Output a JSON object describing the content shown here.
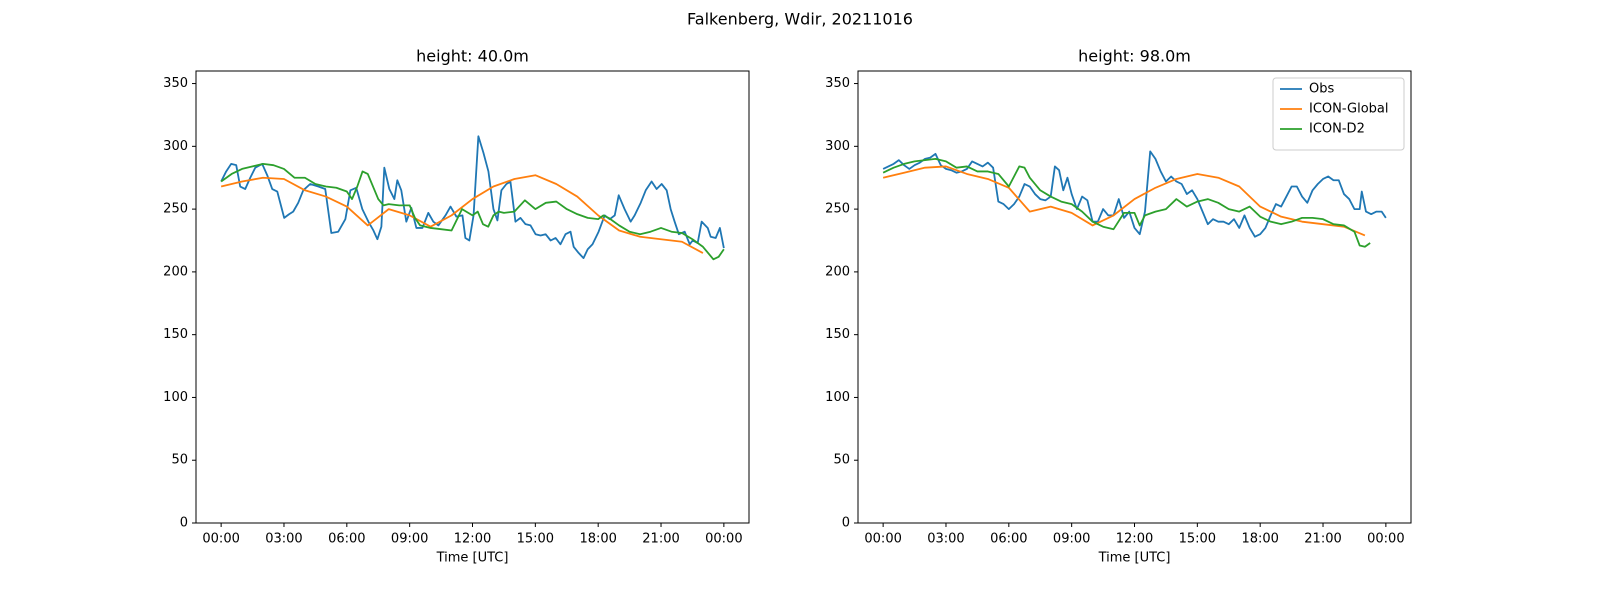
{
  "title": "Falkenberg, Wdir, 20211016",
  "chart_data": [
    {
      "type": "line",
      "title": "height: 40.0m",
      "xlabel": "Time [UTC]",
      "xlim": [
        -1.2,
        25.2
      ],
      "ylim": [
        0,
        360
      ],
      "xticks": [
        {
          "value": 0,
          "label": "00:00"
        },
        {
          "value": 3,
          "label": "03:00"
        },
        {
          "value": 6,
          "label": "06:00"
        },
        {
          "value": 9,
          "label": "09:00"
        },
        {
          "value": 12,
          "label": "12:00"
        },
        {
          "value": 15,
          "label": "15:00"
        },
        {
          "value": 18,
          "label": "18:00"
        },
        {
          "value": 21,
          "label": "21:00"
        },
        {
          "value": 24,
          "label": "00:00"
        }
      ],
      "yticks": [
        0,
        50,
        100,
        150,
        200,
        250,
        300,
        350
      ],
      "series": [
        {
          "name": "Obs",
          "color": "#1f77b4",
          "x": [
            0,
            0.24,
            0.48,
            0.72,
            0.91,
            1.15,
            1.39,
            1.63,
            1.96,
            2.2,
            2.44,
            2.68,
            3.01,
            3.25,
            3.44,
            3.68,
            3.92,
            4.25,
            4.64,
            4.97,
            5.26,
            5.59,
            5.93,
            6.17,
            6.45,
            6.74,
            7.03,
            7.27,
            7.46,
            7.65,
            7.79,
            8.03,
            8.27,
            8.41,
            8.6,
            8.84,
            9.08,
            9.32,
            9.61,
            9.89,
            10.13,
            10.37,
            10.71,
            10.95,
            11.23,
            11.52,
            11.66,
            11.85,
            12.05,
            12.28,
            12.52,
            12.76,
            13.0,
            13.19,
            13.38,
            13.62,
            13.81,
            14.05,
            14.29,
            14.53,
            14.77,
            15.01,
            15.25,
            15.49,
            15.73,
            15.97,
            16.2,
            16.44,
            16.68,
            16.83,
            17.07,
            17.3,
            17.5,
            17.73,
            18.02,
            18.31,
            18.55,
            18.79,
            18.98,
            19.26,
            19.55,
            19.74,
            20.03,
            20.27,
            20.55,
            20.79,
            21.03,
            21.27,
            21.46,
            21.65,
            21.85,
            22.13,
            22.37,
            22.51,
            22.75,
            22.94,
            23.23,
            23.37,
            23.61,
            23.81,
            24.0
          ],
          "values": [
            272,
            280,
            286,
            285,
            268,
            266,
            275,
            283,
            286,
            277,
            266,
            264,
            243,
            246,
            248,
            255,
            265,
            270,
            268,
            266,
            231,
            232,
            242,
            265,
            267,
            250,
            240,
            233,
            226,
            236,
            283,
            266,
            258,
            273,
            265,
            240,
            251,
            235,
            235,
            247,
            240,
            237,
            245,
            252,
            244,
            245,
            227,
            225,
            245,
            308,
            295,
            280,
            250,
            241,
            265,
            270,
            272,
            240,
            243,
            238,
            237,
            230,
            229,
            230,
            225,
            227,
            222,
            230,
            232,
            220,
            215,
            211,
            218,
            222,
            232,
            245,
            242,
            245,
            261,
            250,
            240,
            245,
            255,
            265,
            272,
            266,
            270,
            265,
            250,
            240,
            230,
            232,
            222,
            225,
            223,
            240,
            235,
            228,
            227,
            235,
            219
          ]
        },
        {
          "name": "ICON-Global",
          "color": "#ff7f0e",
          "x": [
            0,
            1,
            2,
            3,
            4,
            5,
            6,
            7,
            8,
            9,
            10,
            11,
            12,
            13,
            14,
            15,
            16,
            17,
            18,
            19,
            20,
            21,
            22,
            23
          ],
          "values": [
            268,
            272,
            275,
            274,
            265,
            260,
            252,
            237,
            250,
            245,
            236,
            245,
            258,
            268,
            274,
            277,
            270,
            260,
            245,
            233,
            228,
            226,
            224,
            215
          ]
        },
        {
          "name": "ICON-D2",
          "color": "#2ca02c",
          "x": [
            0,
            0.5,
            1,
            1.5,
            2,
            2.5,
            3,
            3.5,
            4,
            4.5,
            5,
            5.5,
            6,
            6.25,
            6.5,
            6.75,
            7,
            7.5,
            7.75,
            8,
            8.5,
            9,
            9.25,
            9.5,
            10,
            10.5,
            11,
            11.5,
            12,
            12.25,
            12.5,
            12.75,
            13,
            13.25,
            13.5,
            14,
            14.5,
            15,
            15.5,
            16,
            16.5,
            17,
            17.5,
            18,
            18.25,
            18.5,
            19,
            19.5,
            20,
            20.5,
            21,
            21.5,
            22,
            22.5,
            23,
            23.5,
            23.75,
            24
          ],
          "values": [
            272,
            278,
            282,
            284,
            286,
            285,
            282,
            275,
            275,
            270,
            268,
            267,
            264,
            258,
            268,
            280,
            278,
            258,
            253,
            254,
            253,
            253,
            243,
            237,
            235,
            234,
            233,
            250,
            245,
            248,
            238,
            236,
            245,
            248,
            247,
            248,
            257,
            250,
            255,
            256,
            250,
            246,
            243,
            242,
            245,
            243,
            237,
            232,
            230,
            232,
            235,
            232,
            231,
            226,
            220,
            210,
            212,
            218
          ]
        }
      ]
    },
    {
      "type": "line",
      "title": "height: 98.0m",
      "xlabel": "Time [UTC]",
      "xlim": [
        -1.2,
        25.2
      ],
      "ylim": [
        0,
        360
      ],
      "legend": "upper right",
      "xticks": [
        {
          "value": 0,
          "label": "00:00"
        },
        {
          "value": 3,
          "label": "03:00"
        },
        {
          "value": 6,
          "label": "06:00"
        },
        {
          "value": 9,
          "label": "09:00"
        },
        {
          "value": 12,
          "label": "12:00"
        },
        {
          "value": 15,
          "label": "15:00"
        },
        {
          "value": 18,
          "label": "18:00"
        },
        {
          "value": 21,
          "label": "21:00"
        },
        {
          "value": 24,
          "label": "00:00"
        }
      ],
      "yticks": [
        0,
        50,
        100,
        150,
        200,
        250,
        300,
        350
      ],
      "series": [
        {
          "name": "Obs",
          "color": "#1f77b4",
          "x": [
            0,
            0.25,
            0.5,
            0.75,
            1,
            1.25,
            1.5,
            1.75,
            2,
            2.25,
            2.5,
            2.75,
            3,
            3.25,
            3.5,
            3.75,
            4,
            4.25,
            4.5,
            4.75,
            5,
            5.25,
            5.5,
            5.75,
            6,
            6.25,
            6.5,
            6.75,
            7,
            7.25,
            7.5,
            7.75,
            8,
            8.2,
            8.4,
            8.6,
            8.8,
            9,
            9.25,
            9.5,
            9.75,
            10,
            10.25,
            10.5,
            10.75,
            11,
            11.25,
            11.5,
            11.75,
            12,
            12.25,
            12.5,
            12.75,
            13,
            13.25,
            13.5,
            13.75,
            14,
            14.25,
            14.5,
            14.75,
            15,
            15.25,
            15.5,
            15.75,
            16,
            16.25,
            16.5,
            16.75,
            17,
            17.25,
            17.5,
            17.75,
            18,
            18.25,
            18.5,
            18.75,
            19,
            19.25,
            19.5,
            19.75,
            20,
            20.25,
            20.5,
            20.75,
            21,
            21.25,
            21.5,
            21.75,
            22,
            22.25,
            22.5,
            22.75,
            22.85,
            23.05,
            23.3,
            23.55,
            23.8,
            24
          ],
          "values": [
            282,
            284,
            286,
            289,
            285,
            282,
            285,
            287,
            290,
            291,
            294,
            285,
            282,
            281,
            279,
            280,
            282,
            288,
            286,
            284,
            287,
            283,
            256,
            254,
            250,
            254,
            260,
            270,
            268,
            262,
            258,
            257,
            260,
            284,
            281,
            265,
            275,
            262,
            250,
            260,
            257,
            240,
            240,
            250,
            245,
            245,
            258,
            243,
            248,
            235,
            230,
            248,
            296,
            290,
            280,
            272,
            276,
            272,
            270,
            262,
            265,
            258,
            248,
            238,
            242,
            240,
            240,
            238,
            242,
            235,
            245,
            235,
            228,
            230,
            235,
            245,
            254,
            252,
            260,
            268,
            268,
            260,
            255,
            265,
            270,
            274,
            276,
            273,
            273,
            262,
            258,
            250,
            250,
            264,
            248,
            246,
            248,
            248,
            243
          ]
        },
        {
          "name": "ICON-Global",
          "color": "#ff7f0e",
          "x": [
            0,
            1,
            2,
            3,
            4,
            5,
            6,
            7,
            8,
            9,
            10,
            11,
            12,
            13,
            14,
            15,
            16,
            17,
            18,
            19,
            20,
            21,
            22,
            23
          ],
          "values": [
            275,
            279,
            283,
            284,
            278,
            274,
            267,
            248,
            252,
            247,
            237,
            245,
            258,
            267,
            274,
            278,
            275,
            268,
            252,
            244,
            240,
            238,
            236,
            229
          ]
        },
        {
          "name": "ICON-D2",
          "color": "#2ca02c",
          "x": [
            0,
            0.5,
            1,
            1.5,
            2,
            2.5,
            3,
            3.5,
            4,
            4.5,
            5,
            5.5,
            6,
            6.5,
            6.75,
            7,
            7.5,
            8,
            8.5,
            9,
            9.5,
            10,
            10.5,
            11,
            11.5,
            12,
            12.25,
            12.5,
            13,
            13.5,
            14,
            14.5,
            15,
            15.5,
            16,
            16.5,
            17,
            17.5,
            18,
            18.5,
            19,
            19.5,
            20,
            20.5,
            21,
            21.5,
            22,
            22.5,
            22.75,
            23,
            23.25
          ],
          "values": [
            279,
            283,
            286,
            288,
            289,
            290,
            288,
            283,
            284,
            280,
            280,
            278,
            268,
            284,
            283,
            275,
            265,
            260,
            256,
            254,
            248,
            240,
            236,
            234,
            247,
            247,
            237,
            245,
            248,
            250,
            258,
            252,
            256,
            258,
            255,
            250,
            248,
            252,
            244,
            240,
            238,
            240,
            243,
            243,
            242,
            238,
            237,
            232,
            221,
            220,
            223
          ]
        }
      ]
    }
  ]
}
